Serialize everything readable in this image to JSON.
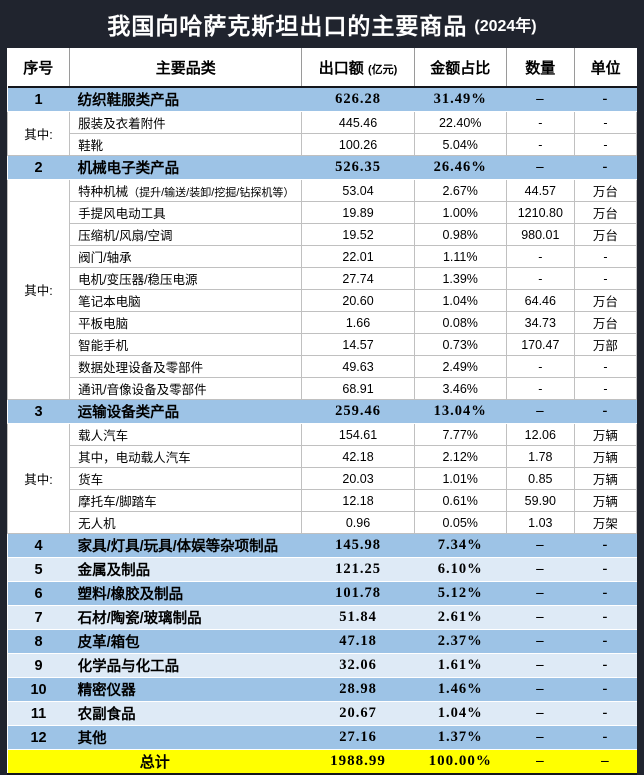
{
  "title": {
    "text": "我国向哈萨克斯坦出口的主要商品",
    "year": "(2024年)"
  },
  "colors": {
    "frame_dark": "#20242e",
    "category_blue": "#9DC3E6",
    "category_light_blue": "#DEEAF6",
    "total_yellow": "#FFFF00",
    "grid_gray": "#C0C0C0"
  },
  "table": {
    "headers": [
      {
        "label": "序号",
        "note": ""
      },
      {
        "label": "主要品类",
        "note": ""
      },
      {
        "label": "出口额",
        "note": "(亿元)"
      },
      {
        "label": "金额占比",
        "note": ""
      },
      {
        "label": "数量",
        "note": ""
      },
      {
        "label": "单位",
        "note": ""
      }
    ],
    "group_label": "其中:",
    "rows": [
      {
        "kind": "cat",
        "no": "1",
        "category": "纺织鞋服类产品",
        "value": "626.28",
        "share": "31.49%",
        "qty": "–",
        "unit": "-"
      },
      {
        "kind": "sub",
        "group_span": 2,
        "category": "服装及衣着附件",
        "value": "445.46",
        "share": "22.40%",
        "qty": "-",
        "unit": "-"
      },
      {
        "kind": "sub",
        "category": "鞋靴",
        "value": "100.26",
        "share": "5.04%",
        "qty": "-",
        "unit": "-"
      },
      {
        "kind": "cat",
        "no": "2",
        "category": "机械电子类产品",
        "value": "526.35",
        "share": "26.46%",
        "qty": "–",
        "unit": "-"
      },
      {
        "kind": "sub",
        "group_span": 10,
        "category": "特种机械",
        "note": "（提升/输送/装卸/挖掘/钻探机等）",
        "value": "53.04",
        "share": "2.67%",
        "qty": "44.57",
        "unit": "万台"
      },
      {
        "kind": "sub",
        "category": "手提风电动工具",
        "value": "19.89",
        "share": "1.00%",
        "qty": "1210.80",
        "unit": "万台"
      },
      {
        "kind": "sub",
        "category": "压缩机/风扇/空调",
        "value": "19.52",
        "share": "0.98%",
        "qty": "980.01",
        "unit": "万台"
      },
      {
        "kind": "sub",
        "category": "阀门/轴承",
        "value": "22.01",
        "share": "1.11%",
        "qty": "-",
        "unit": "-"
      },
      {
        "kind": "sub",
        "category": "电机/变压器/稳压电源",
        "value": "27.74",
        "share": "1.39%",
        "qty": "-",
        "unit": "-"
      },
      {
        "kind": "sub",
        "category": "笔记本电脑",
        "value": "20.60",
        "share": "1.04%",
        "qty": "64.46",
        "unit": "万台"
      },
      {
        "kind": "sub",
        "category": "平板电脑",
        "value": "1.66",
        "share": "0.08%",
        "qty": "34.73",
        "unit": "万台"
      },
      {
        "kind": "sub",
        "category": "智能手机",
        "value": "14.57",
        "share": "0.73%",
        "qty": "170.47",
        "unit": "万部"
      },
      {
        "kind": "sub",
        "category": "数据处理设备及零部件",
        "value": "49.63",
        "share": "2.49%",
        "qty": "-",
        "unit": "-"
      },
      {
        "kind": "sub",
        "category": "通讯/音像设备及零部件",
        "value": "68.91",
        "share": "3.46%",
        "qty": "-",
        "unit": "-"
      },
      {
        "kind": "cat",
        "no": "3",
        "category": "运输设备类产品",
        "value": "259.46",
        "share": "13.04%",
        "qty": "–",
        "unit": "-"
      },
      {
        "kind": "sub",
        "group_span": 5,
        "category": "载人汽车",
        "value": "154.61",
        "share": "7.77%",
        "qty": "12.06",
        "unit": "万辆"
      },
      {
        "kind": "sub",
        "category": "其中，电动载人汽车",
        "value": "42.18",
        "share": "2.12%",
        "qty": "1.78",
        "unit": "万辆"
      },
      {
        "kind": "sub",
        "category": "货车",
        "value": "20.03",
        "share": "1.01%",
        "qty": "0.85",
        "unit": "万辆"
      },
      {
        "kind": "sub",
        "category": "摩托车/脚踏车",
        "value": "12.18",
        "share": "0.61%",
        "qty": "59.90",
        "unit": "万辆"
      },
      {
        "kind": "sub",
        "category": "无人机",
        "value": "0.96",
        "share": "0.05%",
        "qty": "1.03",
        "unit": "万架"
      },
      {
        "kind": "cat",
        "no": "4",
        "category": "家具/灯具/玩具/体娱等杂项制品",
        "value": "145.98",
        "share": "7.34%",
        "qty": "–",
        "unit": "-"
      },
      {
        "kind": "catlight",
        "no": "5",
        "category": "金属及制品",
        "value": "121.25",
        "share": "6.10%",
        "qty": "–",
        "unit": "-"
      },
      {
        "kind": "cat",
        "no": "6",
        "category": "塑料/橡胶及制品",
        "value": "101.78",
        "share": "5.12%",
        "qty": "–",
        "unit": "-"
      },
      {
        "kind": "catlight",
        "no": "7",
        "category": "石材/陶瓷/玻璃制品",
        "value": "51.84",
        "share": "2.61%",
        "qty": "–",
        "unit": "-"
      },
      {
        "kind": "cat",
        "no": "8",
        "category": "皮革/箱包",
        "value": "47.18",
        "share": "2.37%",
        "qty": "–",
        "unit": "-"
      },
      {
        "kind": "catlight",
        "no": "9",
        "category": "化学品与化工品",
        "value": "32.06",
        "share": "1.61%",
        "qty": "–",
        "unit": "-"
      },
      {
        "kind": "cat",
        "no": "10",
        "category": "精密仪器",
        "value": "28.98",
        "share": "1.46%",
        "qty": "–",
        "unit": "-"
      },
      {
        "kind": "catlight",
        "no": "11",
        "category": "农副食品",
        "value": "20.67",
        "share": "1.04%",
        "qty": "–",
        "unit": "-"
      },
      {
        "kind": "cat",
        "no": "12",
        "category": "其他",
        "value": "27.16",
        "share": "1.37%",
        "qty": "–",
        "unit": "-"
      }
    ],
    "total": {
      "label": "总计",
      "value": "1988.99",
      "share": "100.00%",
      "qty": "–",
      "unit": "–"
    }
  }
}
